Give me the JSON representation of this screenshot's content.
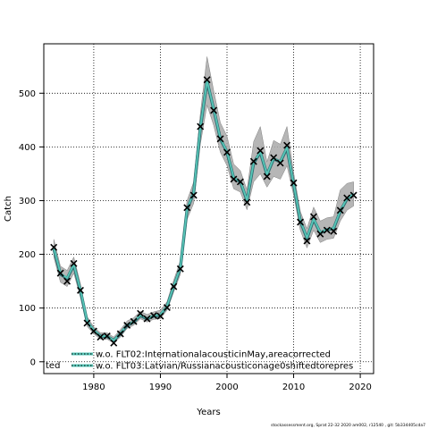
{
  "chart_data": {
    "type": "line",
    "title": "",
    "xlabel": "Years",
    "ylabel": "Catch",
    "xlim": [
      1972.5,
      2022
    ],
    "ylim": [
      -22,
      592
    ],
    "x_ticks": [
      1980,
      1990,
      2000,
      2010,
      2020
    ],
    "y_ticks": [
      0,
      100,
      200,
      300,
      400,
      500
    ],
    "grid": true,
    "legend_position": "bottom-left",
    "colors": {
      "band": "#a9a9a9",
      "series1": "#2f6f73",
      "series2": "#57c7b8",
      "observed_marker": "#000000"
    },
    "observed": {
      "x": [
        1974,
        1975,
        1976,
        1977,
        1978,
        1979,
        1980,
        1981,
        1982,
        1983,
        1984,
        1985,
        1986,
        1987,
        1988,
        1989,
        1990,
        1991,
        1992,
        1993,
        1994,
        1995,
        1996,
        1997,
        1998,
        1999,
        2000,
        2001,
        2002,
        2003,
        2004,
        2005,
        2006,
        2007,
        2008,
        2009,
        2010,
        2011,
        2012,
        2013,
        2014,
        2015,
        2016,
        2017,
        2018,
        2019
      ],
      "y": [
        213,
        165,
        150,
        183,
        133,
        72,
        57,
        46,
        48,
        35,
        52,
        68,
        75,
        90,
        80,
        86,
        85,
        101,
        140,
        173,
        287,
        310,
        438,
        525,
        468,
        415,
        390,
        340,
        335,
        297,
        373,
        393,
        345,
        380,
        370,
        403,
        333,
        260,
        225,
        270,
        238,
        245,
        243,
        282,
        305,
        310
      ]
    },
    "series": [
      {
        "name": "w.o. FLT02:InternationalacousticinMay,areacorrected",
        "values": [
          210,
          163,
          155,
          180,
          132,
          75,
          58,
          48,
          47,
          40,
          52,
          68,
          74,
          86,
          80,
          85,
          87,
          103,
          140,
          175,
          283,
          315,
          435,
          522,
          470,
          415,
          390,
          342,
          335,
          300,
          370,
          390,
          348,
          378,
          372,
          398,
          330,
          262,
          230,
          265,
          240,
          246,
          248,
          280,
          303,
          312
        ]
      },
      {
        "name": "w.o. FLT03:Latvian/Russianacousticonage0shiftedtorepres",
        "values": [
          212,
          165,
          156,
          181,
          134,
          76,
          59,
          48,
          48,
          40,
          53,
          69,
          75,
          87,
          81,
          86,
          88,
          104,
          141,
          176,
          284,
          316,
          436,
          523,
          471,
          416,
          391,
          343,
          336,
          301,
          371,
          391,
          349,
          379,
          373,
          399,
          331,
          263,
          231,
          266,
          241,
          247,
          249,
          281,
          304,
          313
        ]
      }
    ],
    "band": {
      "x": [
        1974,
        1975,
        1976,
        1977,
        1978,
        1979,
        1980,
        1981,
        1982,
        1983,
        1984,
        1985,
        1986,
        1987,
        1988,
        1989,
        1990,
        1991,
        1992,
        1993,
        1994,
        1995,
        1996,
        1997,
        1998,
        1999,
        2000,
        2001,
        2002,
        2003,
        2004,
        2005,
        2006,
        2007,
        2008,
        2009,
        2010,
        2011,
        2012,
        2013,
        2014,
        2015,
        2016,
        2017,
        2018,
        2019
      ],
      "lower": [
        195,
        148,
        140,
        165,
        120,
        66,
        52,
        42,
        42,
        35,
        46,
        62,
        68,
        80,
        74,
        79,
        80,
        96,
        130,
        163,
        265,
        295,
        405,
        478,
        440,
        390,
        365,
        322,
        316,
        283,
        335,
        350,
        325,
        345,
        340,
        365,
        310,
        245,
        212,
        245,
        222,
        228,
        230,
        262,
        282,
        290
      ],
      "upper": [
        228,
        178,
        170,
        195,
        145,
        84,
        65,
        54,
        54,
        46,
        60,
        76,
        82,
        94,
        88,
        93,
        96,
        112,
        152,
        188,
        300,
        335,
        462,
        568,
        505,
        445,
        420,
        368,
        356,
        320,
        410,
        438,
        372,
        412,
        405,
        438,
        352,
        280,
        248,
        288,
        262,
        268,
        270,
        320,
        332,
        335
      ]
    },
    "legend": [
      "w.o. FLT02:InternationalacousticinMay,areacorrected",
      "w.o. FLT03:Latvian/Russianacousticonage0shiftedtorepres"
    ],
    "legend_prefix": "ted",
    "footer": "stockassessment.org, Sprat  22-32  2020  am002, r12540 ,  git: 5b334405cda7"
  }
}
